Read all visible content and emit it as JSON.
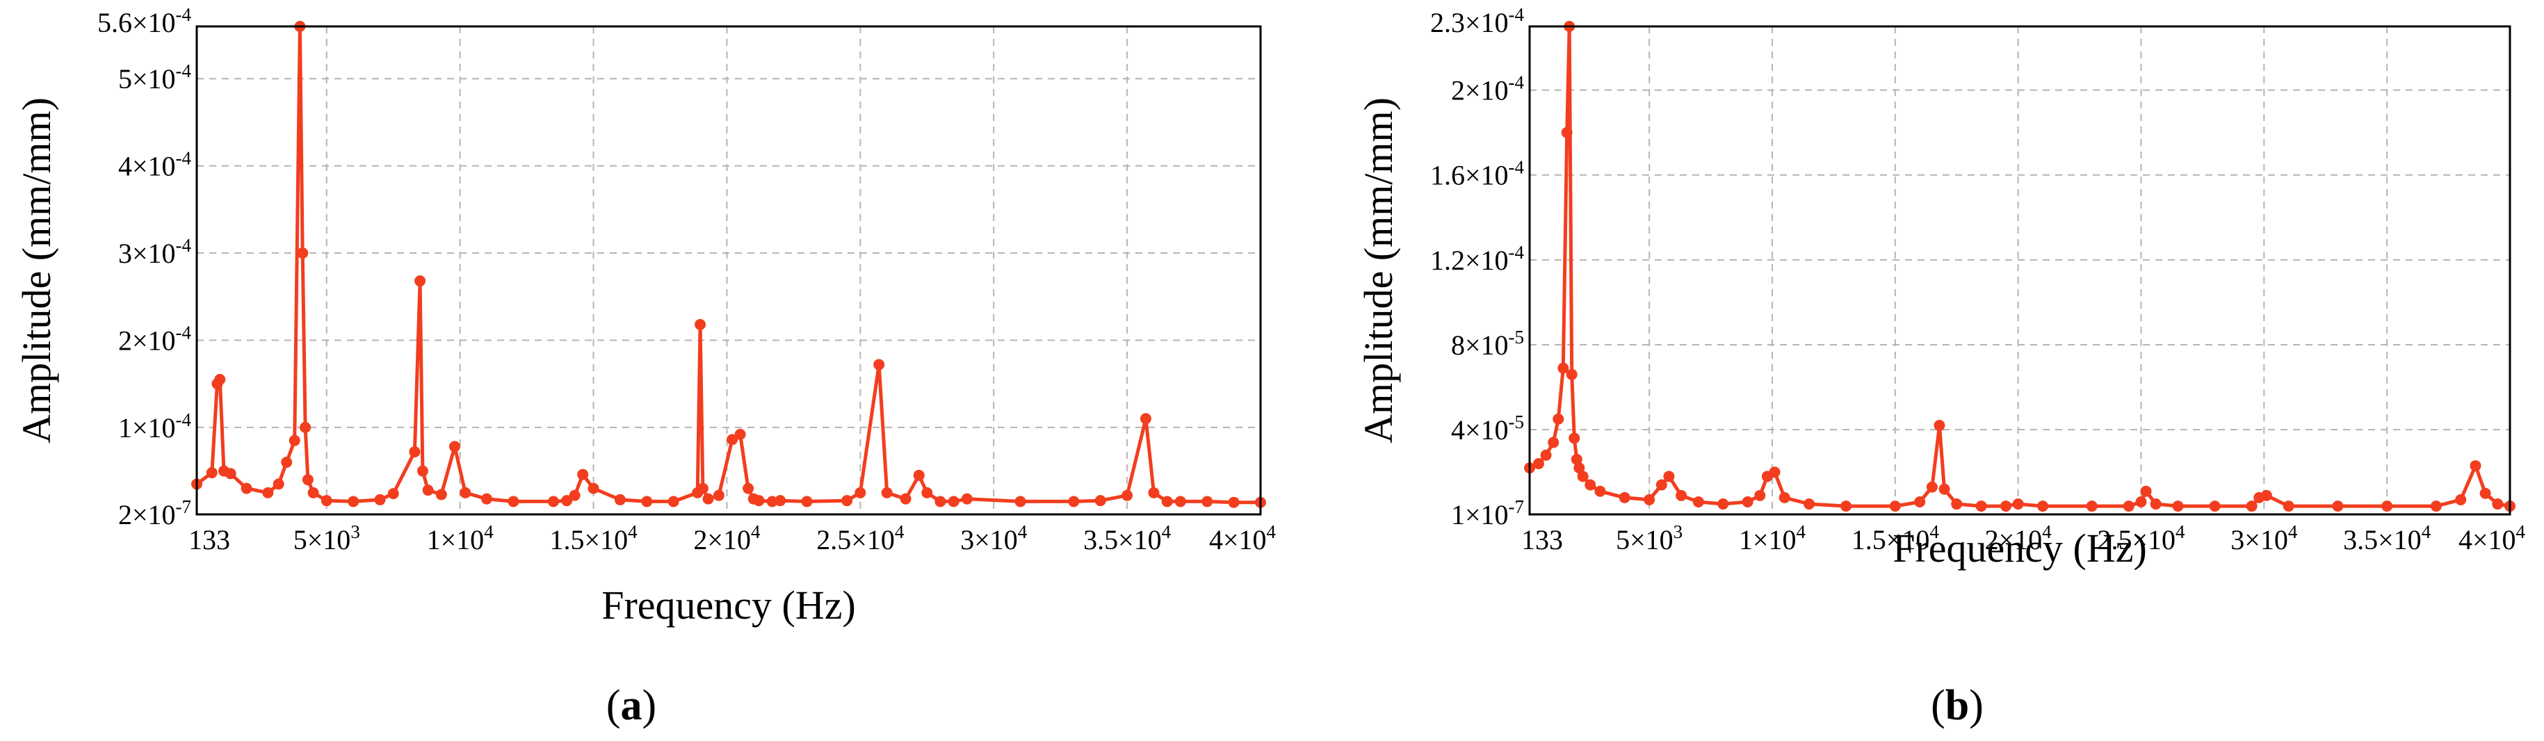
{
  "accent_color": "#f23e1f",
  "chart_data": [
    {
      "type": "line",
      "panel_label": "a",
      "xlabel": "Frequency (Hz)",
      "ylabel": "Amplitude (mm/mm)",
      "xlim": [
        133,
        40000
      ],
      "ylim": [
        2e-07,
        0.00056
      ],
      "x_ticks": [
        133,
        5000,
        10000,
        15000,
        20000,
        25000,
        30000,
        35000,
        40000
      ],
      "x_tick_labels": [
        {
          "base": "133"
        },
        {
          "base": "5×10",
          "exp": "3"
        },
        {
          "base": "1×10",
          "exp": "4"
        },
        {
          "base": "1.5×10",
          "exp": "4"
        },
        {
          "base": "2×10",
          "exp": "4"
        },
        {
          "base": "2.5×10",
          "exp": "4"
        },
        {
          "base": "3×10",
          "exp": "4"
        },
        {
          "base": "3.5×10",
          "exp": "4"
        },
        {
          "base": "4×10",
          "exp": "4"
        }
      ],
      "y_ticks": [
        2e-07,
        0.0001,
        0.0002,
        0.0003,
        0.0004,
        0.0005,
        0.00056
      ],
      "y_tick_labels": [
        {
          "base": "2×10",
          "exp": "-7"
        },
        {
          "base": "1×10",
          "exp": "-4"
        },
        {
          "base": "2×10",
          "exp": "-4"
        },
        {
          "base": "3×10",
          "exp": "-4"
        },
        {
          "base": "4×10",
          "exp": "-4"
        },
        {
          "base": "5×10",
          "exp": "-4"
        },
        {
          "base": "5.6×10",
          "exp": "-4"
        }
      ],
      "grid": true,
      "series": [
        {
          "color": "#f23e1f",
          "x": [
            133,
            700,
            900,
            1000,
            1150,
            1400,
            2000,
            2800,
            3200,
            3500,
            3800,
            4000,
            4100,
            4200,
            4300,
            4500,
            5000,
            6000,
            7000,
            7500,
            8300,
            8500,
            8600,
            8800,
            9300,
            9800,
            10200,
            11000,
            12000,
            13500,
            14000,
            14300,
            14600,
            15000,
            16000,
            17000,
            18000,
            18900,
            19000,
            19100,
            19300,
            19700,
            20200,
            20500,
            20800,
            21000,
            21200,
            21700,
            22000,
            23000,
            24500,
            25000,
            25700,
            26000,
            26700,
            27200,
            27500,
            28000,
            28500,
            29000,
            31000,
            33000,
            34000,
            35000,
            35700,
            36000,
            36500,
            37000,
            38000,
            39000,
            40000
          ],
          "y": [
            3.5e-05,
            4.8e-05,
            0.00015,
            0.000155,
            5e-05,
            4.7e-05,
            3e-05,
            2.5e-05,
            3.5e-05,
            6e-05,
            8.5e-05,
            0.00056,
            0.0003,
            0.0001,
            4e-05,
            2.5e-05,
            1.6e-05,
            1.5e-05,
            1.7e-05,
            2.4e-05,
            7.2e-05,
            0.000268,
            5e-05,
            2.8e-05,
            2.3e-05,
            7.8e-05,
            2.5e-05,
            1.8e-05,
            1.5e-05,
            1.5e-05,
            1.6e-05,
            2.2e-05,
            4.6e-05,
            3e-05,
            1.7e-05,
            1.5e-05,
            1.5e-05,
            2.5e-05,
            0.000218,
            3e-05,
            1.8e-05,
            2.2e-05,
            8.6e-05,
            9.2e-05,
            3e-05,
            1.8e-05,
            1.6e-05,
            1.5e-05,
            1.6e-05,
            1.5e-05,
            1.6e-05,
            2.5e-05,
            0.000172,
            2.5e-05,
            1.8e-05,
            4.5e-05,
            2.5e-05,
            1.5e-05,
            1.5e-05,
            1.8e-05,
            1.5e-05,
            1.5e-05,
            1.6e-05,
            2.2e-05,
            0.00011,
            2.5e-05,
            1.5e-05,
            1.5e-05,
            1.5e-05,
            1.4e-05,
            1.4e-05
          ]
        }
      ]
    },
    {
      "type": "line",
      "panel_label": "b",
      "xlabel": "Frequency (Hz)",
      "ylabel": "Amplitude (mm/mm)",
      "xlim": [
        133,
        40000
      ],
      "ylim": [
        1e-07,
        0.00023
      ],
      "x_ticks": [
        133,
        5000,
        10000,
        15000,
        20000,
        25000,
        30000,
        35000,
        40000
      ],
      "x_tick_labels": [
        {
          "base": "133"
        },
        {
          "base": "5×10",
          "exp": "3"
        },
        {
          "base": "1×10",
          "exp": "4"
        },
        {
          "base": "1.5×10",
          "exp": "4"
        },
        {
          "base": "2×10",
          "exp": "4"
        },
        {
          "base": "2.5×10",
          "exp": "4"
        },
        {
          "base": "3×10",
          "exp": "4"
        },
        {
          "base": "3.5×10",
          "exp": "4"
        },
        {
          "base": "4×10",
          "exp": "4"
        }
      ],
      "y_ticks": [
        1e-07,
        4e-05,
        8e-05,
        0.00012,
        0.00016,
        0.0002,
        0.00023
      ],
      "y_tick_labels": [
        {
          "base": "1×10",
          "exp": "-7"
        },
        {
          "base": "4×10",
          "exp": "-5"
        },
        {
          "base": "8×10",
          "exp": "-5"
        },
        {
          "base": "1.2×10",
          "exp": "-4"
        },
        {
          "base": "1.6×10",
          "exp": "-4"
        },
        {
          "base": "2×10",
          "exp": "-4"
        },
        {
          "base": "2.3×10",
          "exp": "-4"
        }
      ],
      "grid": true,
      "series": [
        {
          "color": "#f23e1f",
          "x": [
            133,
            500,
            800,
            1100,
            1300,
            1500,
            1650,
            1750,
            1850,
            1950,
            2050,
            2150,
            2300,
            2600,
            3000,
            4000,
            5000,
            5500,
            5800,
            6300,
            7000,
            8000,
            9000,
            9500,
            9800,
            10100,
            10500,
            11500,
            13000,
            15000,
            16000,
            16500,
            16800,
            17000,
            17500,
            18500,
            19500,
            20000,
            21000,
            23000,
            24500,
            25000,
            25200,
            25600,
            26500,
            28000,
            29500,
            29800,
            30100,
            31000,
            33000,
            35000,
            37000,
            38000,
            38600,
            39000,
            39500,
            40000
          ],
          "y": [
            2.2e-05,
            2.4e-05,
            2.8e-05,
            3.4e-05,
            4.5e-05,
            6.9e-05,
            0.00018,
            0.00023,
            6.6e-05,
            3.6e-05,
            2.6e-05,
            2.2e-05,
            1.8e-05,
            1.4e-05,
            1.1e-05,
            8e-06,
            7e-06,
            1.4e-05,
            1.8e-05,
            9e-06,
            6e-06,
            5e-06,
            6e-06,
            9e-06,
            1.8e-05,
            2e-05,
            8e-06,
            5e-06,
            4e-06,
            4e-06,
            6e-06,
            1.3e-05,
            4.2e-05,
            1.2e-05,
            5e-06,
            4e-06,
            4e-06,
            5e-06,
            4e-06,
            4e-06,
            4e-06,
            6e-06,
            1.1e-05,
            5e-06,
            4e-06,
            4e-06,
            4e-06,
            8e-06,
            9e-06,
            4e-06,
            4e-06,
            4e-06,
            4e-06,
            7e-06,
            2.3e-05,
            1e-05,
            5e-06,
            4e-06
          ]
        }
      ]
    }
  ]
}
